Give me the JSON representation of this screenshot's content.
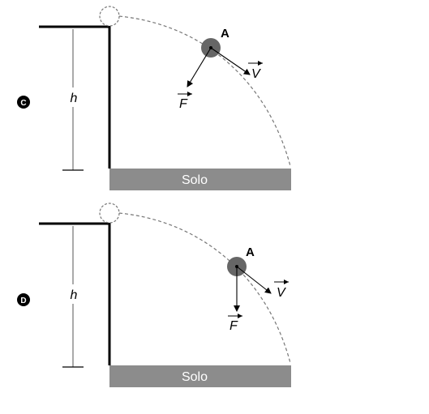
{
  "panels": [
    {
      "option": "C",
      "height_symbol": "h",
      "ground_label": "Solo",
      "point_label": "A",
      "velocity_label": "V",
      "force_label": "F",
      "force_direction": "toward-center"
    },
    {
      "option": "D",
      "height_symbol": "h",
      "ground_label": "Solo",
      "point_label": "A",
      "velocity_label": "V",
      "force_label": "F",
      "force_direction": "vertical-down"
    }
  ],
  "colors": {
    "line": "#000000",
    "ground": "#8c8c8c",
    "ball": "#666666",
    "dashed": "#777777"
  }
}
